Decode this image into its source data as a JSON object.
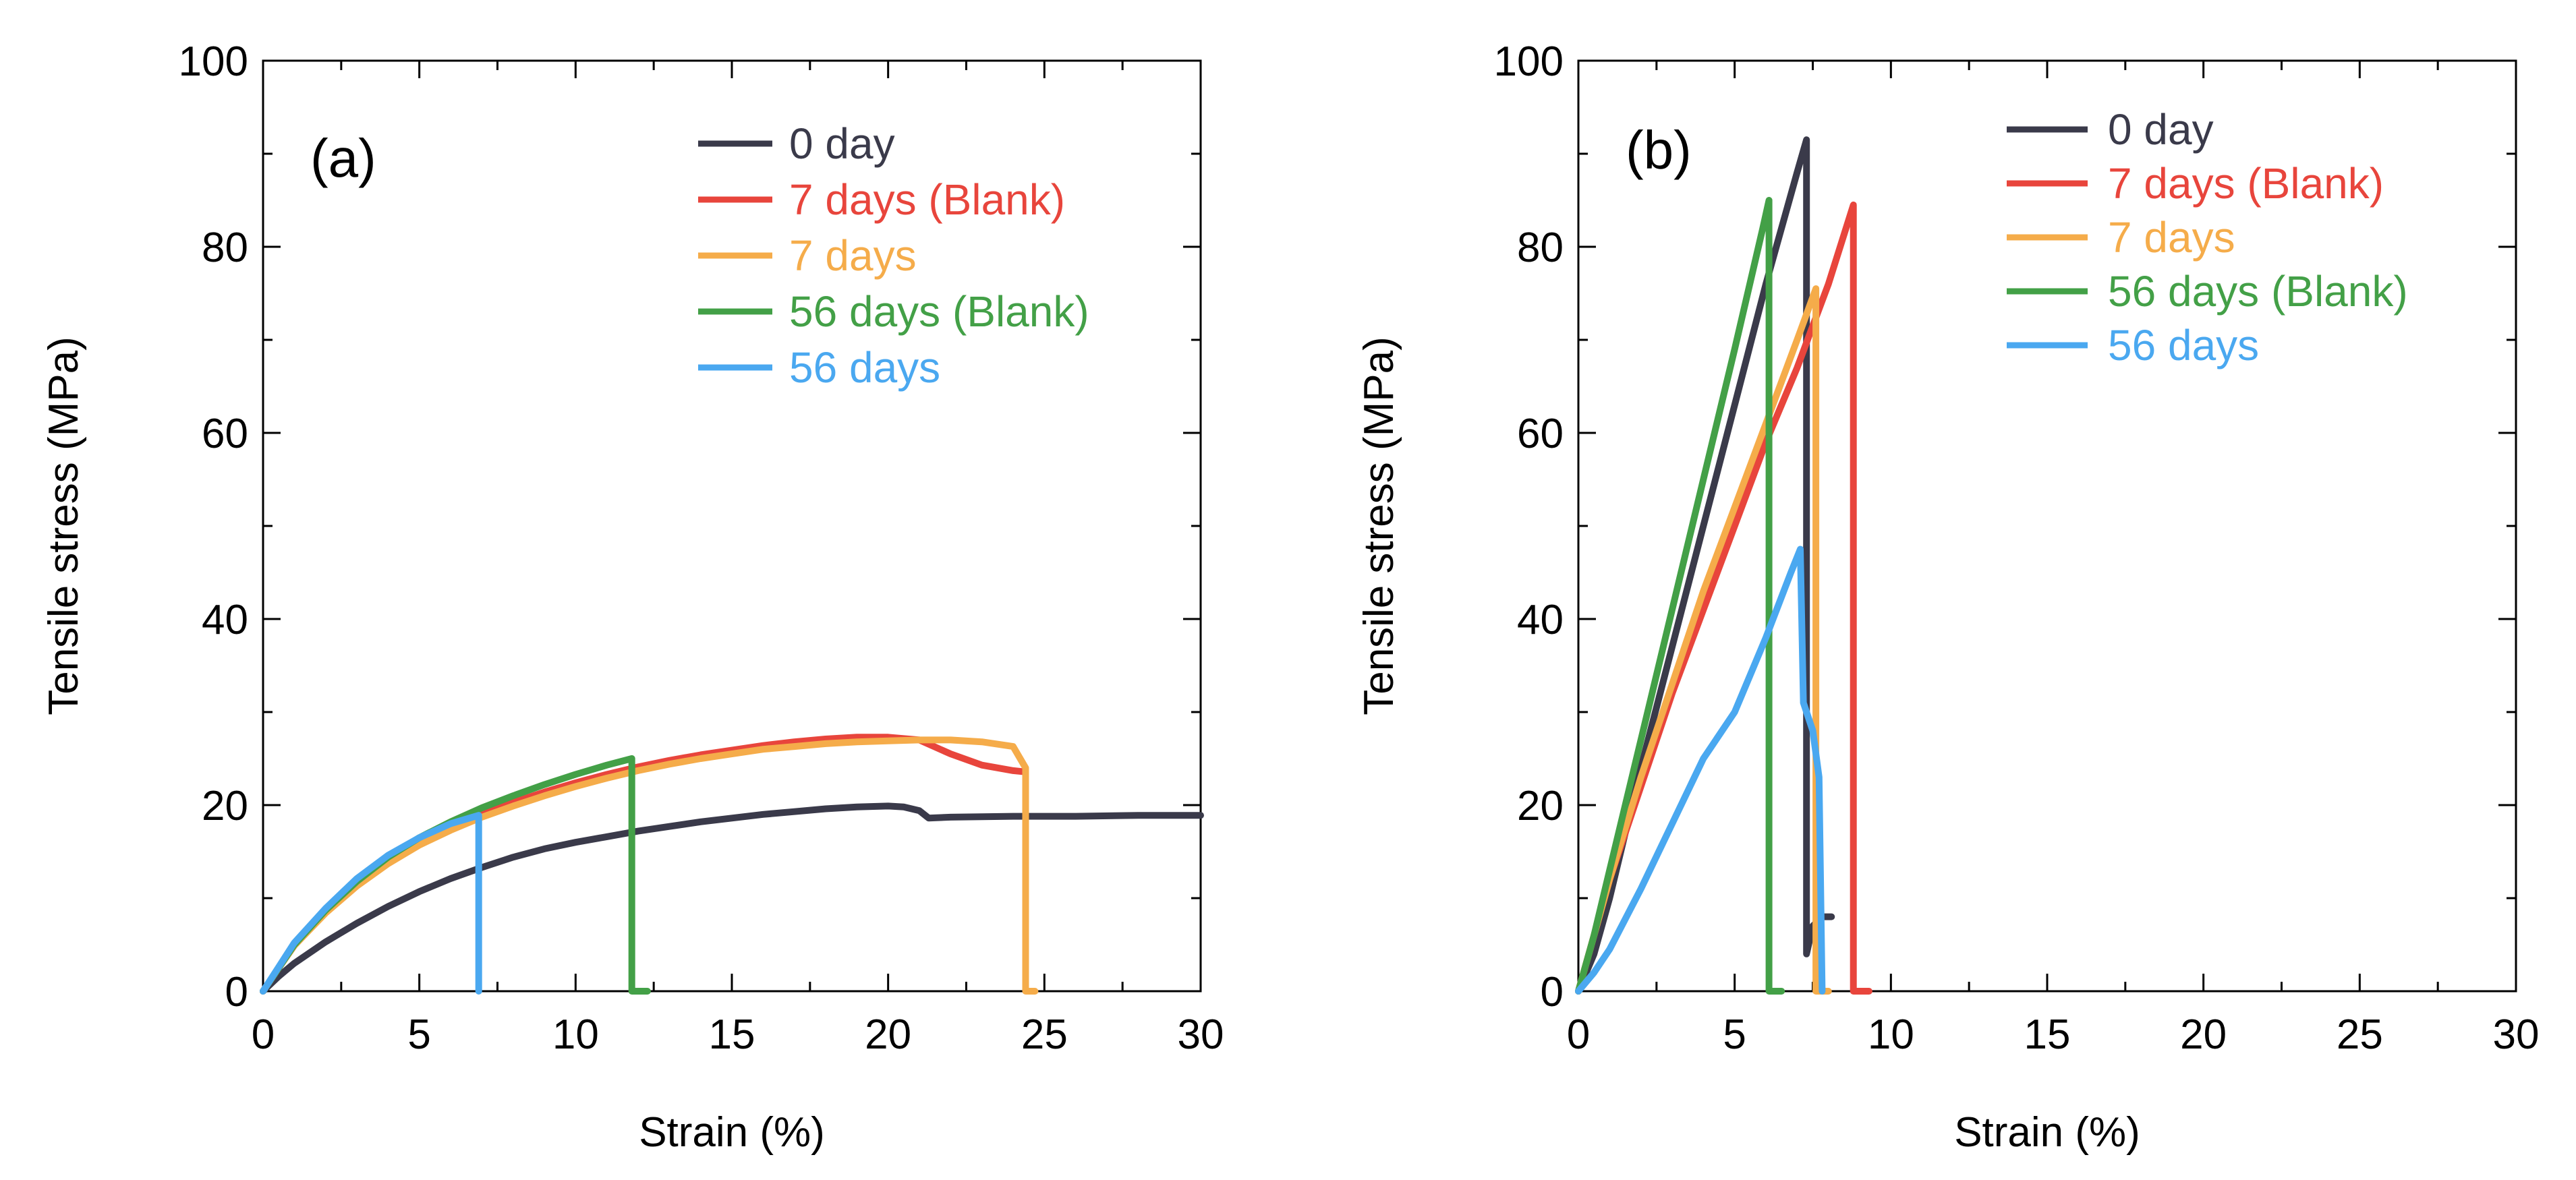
{
  "chart_data": [
    {
      "type": "line",
      "panel_label": "(a)",
      "xlabel": "Strain (%)",
      "ylabel": "Tensile stress (MPa)",
      "xlim": [
        0,
        30
      ],
      "ylim": [
        0,
        100
      ],
      "xticks": [
        0,
        5,
        10,
        15,
        20,
        25,
        30
      ],
      "yticks": [
        0,
        20,
        40,
        60,
        80,
        100
      ],
      "grid": false,
      "legend_position": "top-right",
      "series": [
        {
          "name": "0 day",
          "color": "#3a3a4a",
          "x": [
            0,
            0.5,
            1,
            2,
            3,
            4,
            5,
            6,
            7,
            8,
            9,
            10,
            11,
            12,
            13,
            14,
            15,
            16,
            17,
            18,
            19,
            20,
            20.5,
            21,
            21.3,
            22,
            24,
            26,
            28,
            30
          ],
          "y": [
            0,
            1.6,
            3.0,
            5.3,
            7.3,
            9.1,
            10.7,
            12.1,
            13.3,
            14.4,
            15.3,
            16.0,
            16.6,
            17.2,
            17.7,
            18.2,
            18.6,
            19.0,
            19.3,
            19.6,
            19.8,
            19.9,
            19.8,
            19.4,
            18.6,
            18.7,
            18.8,
            18.8,
            18.9,
            18.9
          ]
        },
        {
          "name": "7 days (Blank)",
          "color": "#e8453c",
          "x": [
            0,
            0.5,
            1,
            2,
            3,
            4,
            5,
            6,
            7,
            8,
            9,
            10,
            11,
            12,
            13,
            14,
            15,
            16,
            17,
            18,
            19,
            20,
            21,
            22,
            23,
            24,
            24.3
          ],
          "y": [
            0,
            2.5,
            4.9,
            8.5,
            11.5,
            14.0,
            16.0,
            17.7,
            19.1,
            20.3,
            21.4,
            22.4,
            23.3,
            24.1,
            24.8,
            25.4,
            25.9,
            26.4,
            26.8,
            27.1,
            27.3,
            27.3,
            27.0,
            25.5,
            24.3,
            23.7,
            23.6
          ]
        },
        {
          "name": "7 days",
          "color": "#f5ac4a",
          "x": [
            0,
            0.5,
            1,
            2,
            3,
            4,
            5,
            6,
            7,
            8,
            9,
            10,
            11,
            12,
            13,
            14,
            15,
            16,
            17,
            18,
            19,
            20,
            21,
            22,
            23,
            24,
            24.4,
            24.4,
            24.7
          ],
          "y": [
            0,
            2.5,
            4.9,
            8.4,
            11.3,
            13.7,
            15.7,
            17.3,
            18.7,
            19.9,
            21.0,
            22.0,
            22.9,
            23.7,
            24.4,
            25.0,
            25.5,
            26.0,
            26.3,
            26.6,
            26.8,
            26.9,
            27.0,
            27.0,
            26.8,
            26.3,
            24.0,
            0,
            0
          ]
        },
        {
          "name": "56 days (Blank)",
          "color": "#43a047",
          "x": [
            0,
            0.5,
            1,
            2,
            3,
            4,
            5,
            6,
            7,
            8,
            9,
            10,
            11,
            11.8,
            11.8,
            12.3
          ],
          "y": [
            0,
            2.5,
            5.0,
            8.7,
            11.8,
            14.4,
            16.5,
            18.2,
            19.7,
            21.0,
            22.2,
            23.3,
            24.3,
            25.0,
            0,
            0
          ]
        },
        {
          "name": "56 days",
          "color": "#4aa8f0",
          "x": [
            0,
            0.5,
            1,
            2,
            3,
            4,
            5,
            6,
            6.8,
            6.9,
            6.9
          ],
          "y": [
            0,
            2.6,
            5.2,
            8.9,
            12.1,
            14.6,
            16.5,
            18.0,
            18.8,
            18.9,
            0
          ]
        }
      ]
    },
    {
      "type": "line",
      "panel_label": "(b)",
      "xlabel": "Strain (%)",
      "ylabel": "Tensile stress (MPa)",
      "xlim": [
        0,
        30
      ],
      "ylim": [
        0,
        100
      ],
      "xticks": [
        0,
        5,
        10,
        15,
        20,
        25,
        30
      ],
      "yticks": [
        0,
        20,
        40,
        60,
        80,
        100
      ],
      "grid": false,
      "legend_position": "top-right",
      "series": [
        {
          "name": "0 day",
          "color": "#3a3a4a",
          "x": [
            0,
            0.5,
            1,
            2,
            3,
            4,
            5,
            6,
            7,
            7.3,
            7.3,
            7.5,
            7.8,
            8.1
          ],
          "y": [
            0,
            4,
            10,
            24,
            37,
            50,
            63,
            76,
            88,
            91.5,
            4,
            7,
            8,
            8
          ]
        },
        {
          "name": "7 days (Blank)",
          "color": "#e8453c",
          "x": [
            0,
            0.5,
            1,
            2,
            3,
            4,
            5,
            6,
            7,
            8,
            8.8,
            8.8,
            9.3
          ],
          "y": [
            0,
            6,
            12,
            22,
            32,
            41,
            50,
            59,
            67,
            76,
            84.5,
            0,
            0
          ]
        },
        {
          "name": "7 days",
          "color": "#f5ac4a",
          "x": [
            0,
            0.5,
            1,
            2,
            3,
            4,
            5,
            6,
            7,
            7.6,
            7.6,
            8.0
          ],
          "y": [
            0,
            6,
            12,
            23,
            33,
            43,
            52,
            61,
            70,
            75.5,
            0,
            0
          ]
        },
        {
          "name": "56 days (Blank)",
          "color": "#43a047",
          "x": [
            0,
            0.5,
            1,
            2,
            3,
            4,
            5,
            5.9,
            6.1,
            6.1,
            6.5
          ],
          "y": [
            0,
            6,
            13,
            27,
            41,
            55,
            69,
            82,
            85,
            0,
            0
          ]
        },
        {
          "name": "56 days",
          "color": "#4aa8f0",
          "x": [
            0,
            0.5,
            1,
            2,
            3,
            4,
            5,
            6,
            6.8,
            7.1,
            7.2,
            7.5,
            7.7,
            7.8
          ],
          "y": [
            0,
            2,
            4.5,
            11,
            18,
            25,
            30,
            38,
            45,
            47.5,
            31,
            28,
            23,
            0
          ]
        }
      ]
    }
  ]
}
